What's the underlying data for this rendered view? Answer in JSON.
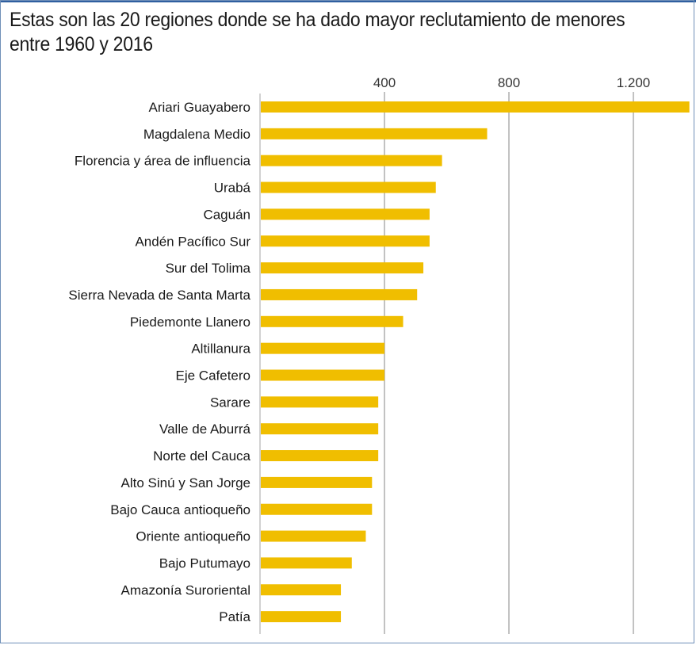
{
  "chart_data": {
    "type": "bar",
    "orientation": "horizontal",
    "title": "Estas son las 20 regiones donde se ha dado mayor reclutamiento de menores entre 1960 y 2016",
    "xlabel": "",
    "ylabel": "",
    "xlim": [
      0,
      1400
    ],
    "x_ticks": [
      400,
      800,
      1200
    ],
    "x_tick_labels": [
      "400",
      "800",
      "1.200"
    ],
    "grid": "vertical",
    "bar_color": "#f0be00",
    "categories": [
      "Ariari Guayabero",
      "Magdalena Medio",
      "Florencia y área de influencia",
      "Urabá",
      "Caguán",
      "Andén Pacífico Sur",
      "Sur del Tolima",
      "Sierra Nevada de Santa Marta",
      "Piedemonte Llanero",
      "Altillanura",
      "Eje Cafetero",
      "Sarare",
      "Valle de Aburrá",
      "Norte del Cauca",
      "Alto Sinú y San Jorge",
      "Bajo Cauca antioqueño",
      "Oriente antioqueño",
      "Bajo Putumayo",
      "Amazonía Suroriental",
      "Patía"
    ],
    "values": [
      1380,
      730,
      585,
      565,
      545,
      545,
      525,
      505,
      460,
      400,
      400,
      380,
      380,
      380,
      360,
      360,
      340,
      295,
      260,
      260
    ]
  }
}
